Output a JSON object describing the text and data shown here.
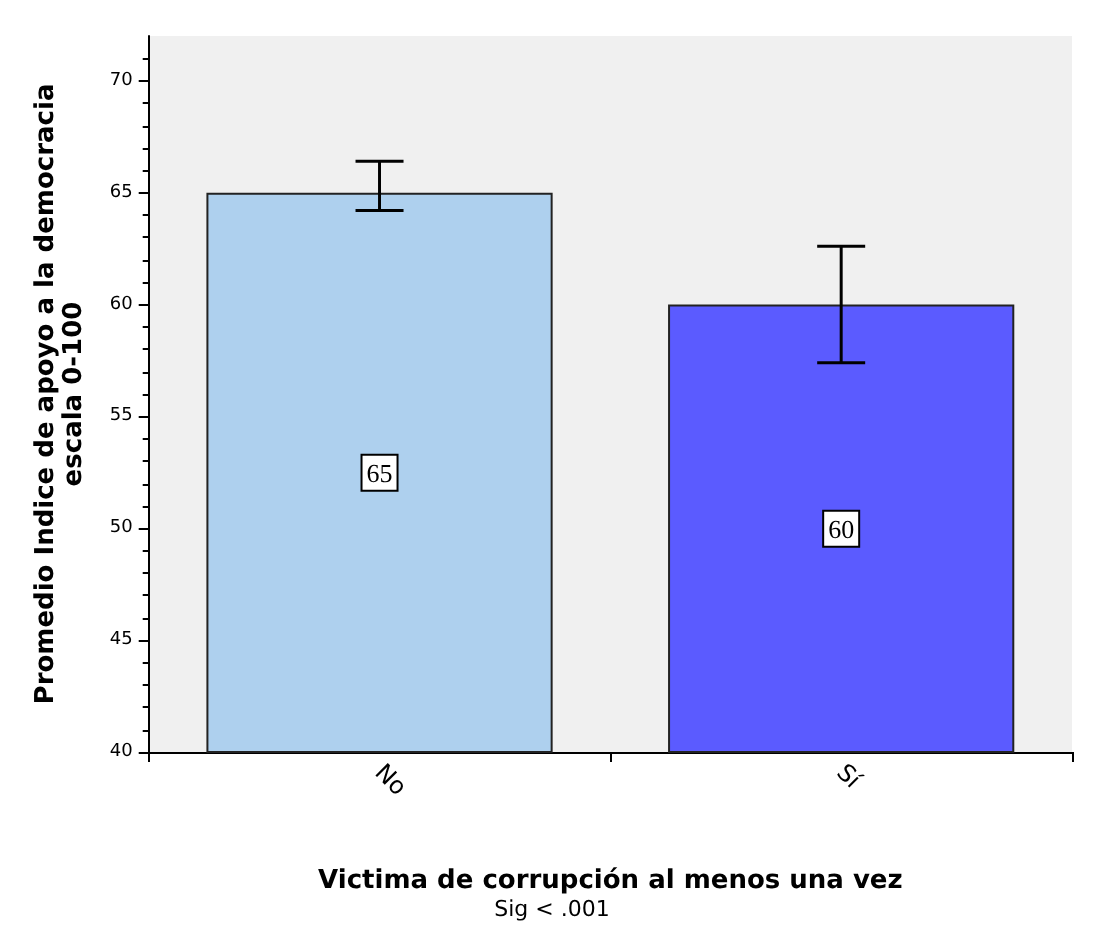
{
  "chart_data": {
    "type": "bar",
    "xlabel": "Victima de corrupción al menos una vez",
    "ylabel": "Promedio Indice de apoyo a la democracia\nescala 0-100",
    "categories": [
      "No",
      "Sí"
    ],
    "values": [
      65,
      60
    ],
    "colors": [
      "#aed0ee",
      "#5b5bff"
    ],
    "errors": [
      [
        64.2,
        66.4
      ],
      [
        57.4,
        62.6
      ]
    ],
    "data_labels": true,
    "ylim": [
      40,
      72
    ],
    "yticks": [
      40,
      45,
      50,
      55,
      60,
      65,
      70
    ],
    "grid": false,
    "annotations": [
      "Sig < .001"
    ]
  }
}
